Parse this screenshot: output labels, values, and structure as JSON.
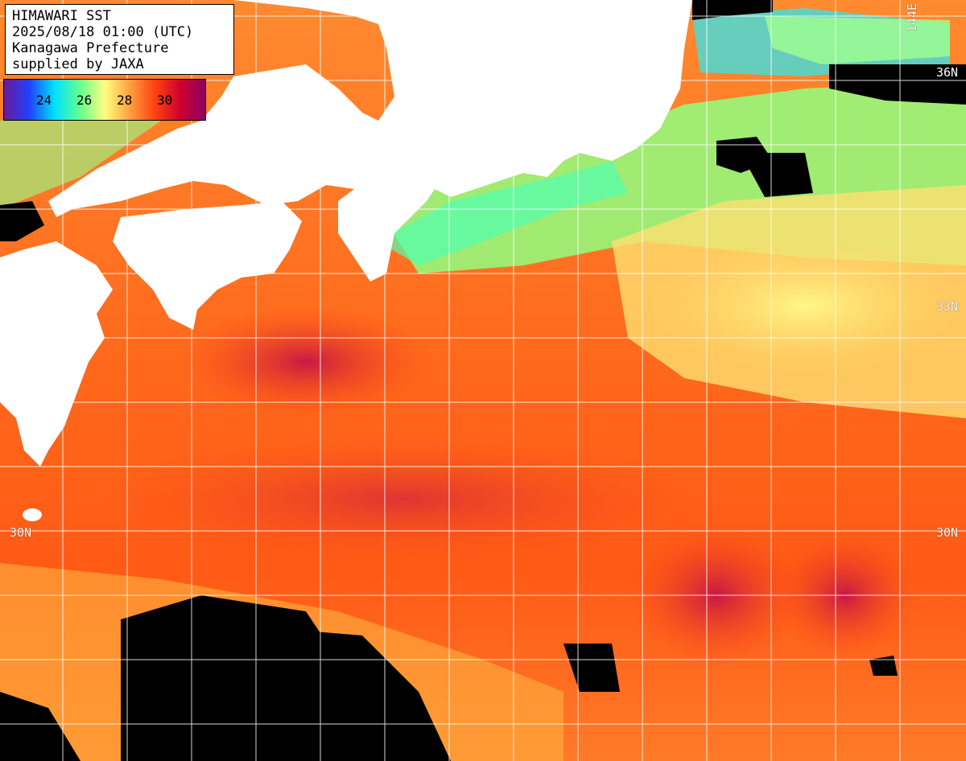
{
  "header": {
    "lines": [
      "HIMAWARI SST",
      "2025/08/18 01:00 (UTC)",
      "Kanagawa Prefecture",
      "supplied by JAXA"
    ]
  },
  "legend": {
    "labels": [
      "24",
      "26",
      "28",
      "30"
    ],
    "colors": [
      "#6a1a9a",
      "#2040ff",
      "#00e0ff",
      "#60ff90",
      "#ffff80",
      "#ffa040",
      "#ff4010",
      "#d00030",
      "#8a0060"
    ]
  },
  "grid": {
    "labels": {
      "lon_top": "144E",
      "lat_36": "36N",
      "lat_33": "33N",
      "lat_30_left": "30N",
      "lat_30_right": "30N"
    }
  },
  "map": {
    "land_color": "#ffffff",
    "no_data_color": "#000000",
    "grid_color": "#ffffff"
  }
}
